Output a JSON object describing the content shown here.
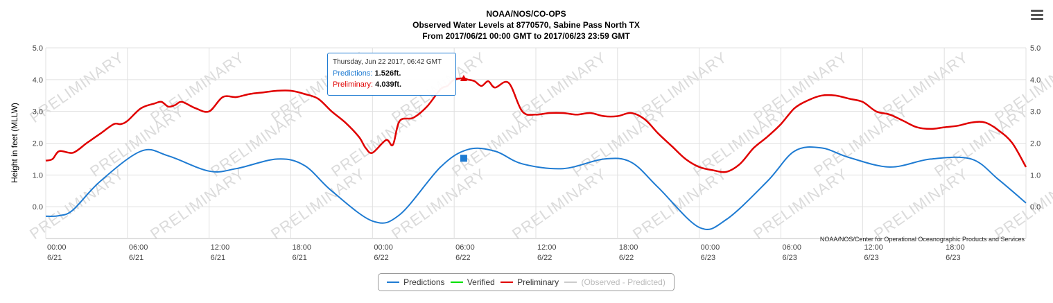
{
  "chart_data": {
    "type": "line",
    "title": "NOAA/NOS/CO-OPS",
    "subtitle_line1": "Observed Water Levels at 8770570, Sabine Pass North TX",
    "subtitle_line2": "From 2017/06/21 00:00 GMT to 2017/06/23 23:59 GMT",
    "ylabel": "Height in feet (MLLW)",
    "ylim": [
      -1.0,
      5.0
    ],
    "xlim_hours": [
      0,
      72
    ],
    "y_ticks": [
      "5.0",
      "4.0",
      "3.0",
      "2.0",
      "1.0",
      "0.0"
    ],
    "y_tick_values": [
      5,
      4,
      3,
      2,
      1,
      0
    ],
    "x_ticks": [
      {
        "time": "00:00",
        "date": "6/21",
        "hour": 0
      },
      {
        "time": "06:00",
        "date": "6/21",
        "hour": 6
      },
      {
        "time": "12:00",
        "date": "6/21",
        "hour": 12
      },
      {
        "time": "18:00",
        "date": "6/21",
        "hour": 18
      },
      {
        "time": "00:00",
        "date": "6/22",
        "hour": 24
      },
      {
        "time": "06:00",
        "date": "6/22",
        "hour": 30
      },
      {
        "time": "12:00",
        "date": "6/22",
        "hour": 36
      },
      {
        "time": "18:00",
        "date": "6/22",
        "hour": 42
      },
      {
        "time": "00:00",
        "date": "6/23",
        "hour": 48
      },
      {
        "time": "06:00",
        "date": "6/23",
        "hour": 54
      },
      {
        "time": "12:00",
        "date": "6/23",
        "hour": 60
      },
      {
        "time": "18:00",
        "date": "6/23",
        "hour": 66
      }
    ],
    "watermark": "PRELIMINARY",
    "credit": "NOAA/NOS/Center for Operational Oceanographic Products and Services",
    "series": [
      {
        "name": "Predictions",
        "color": "#1e7bd2",
        "hours": [
          0,
          1,
          2,
          4,
          7,
          9,
          12,
          14,
          17,
          19,
          21,
          24,
          26,
          29,
          31,
          33,
          35,
          38,
          41,
          43,
          45,
          48,
          50,
          53,
          55,
          57,
          59,
          62,
          65,
          68,
          70,
          72
        ],
        "values": [
          -0.3,
          -0.28,
          -0.1,
          0.8,
          1.75,
          1.6,
          1.12,
          1.2,
          1.5,
          1.3,
          0.5,
          -0.45,
          -0.25,
          1.25,
          1.8,
          1.75,
          1.35,
          1.2,
          1.5,
          1.4,
          0.6,
          -0.65,
          -0.4,
          0.8,
          1.75,
          1.85,
          1.55,
          1.25,
          1.5,
          1.5,
          0.85,
          0.12
        ]
      },
      {
        "name": "Verified",
        "color": "#00e000",
        "hours": [],
        "values": []
      },
      {
        "name": "Preliminary",
        "color": "#e00000",
        "hours": [
          0,
          0.5,
          1,
          2,
          3,
          4,
          5,
          5.5,
          6,
          7,
          8,
          8.5,
          9,
          9.5,
          10,
          11,
          12,
          13,
          14,
          15,
          16,
          17,
          18,
          19,
          20,
          21,
          22,
          23,
          23.5,
          24,
          25,
          25.5,
          26,
          27,
          28,
          29,
          29.5,
          30,
          30.7,
          31,
          31.5,
          32,
          32.5,
          33,
          34,
          35,
          36,
          37,
          38,
          39,
          40,
          41,
          42,
          43,
          44,
          45,
          46,
          47,
          48,
          49,
          50,
          51,
          52,
          53,
          54,
          55,
          56,
          57,
          58,
          59,
          60,
          61,
          62,
          63,
          64,
          65,
          66,
          67,
          68,
          69,
          70,
          71,
          72
        ],
        "values": [
          1.45,
          1.5,
          1.75,
          1.7,
          2.0,
          2.3,
          2.6,
          2.6,
          2.7,
          3.1,
          3.25,
          3.3,
          3.15,
          3.2,
          3.3,
          3.1,
          3.0,
          3.45,
          3.45,
          3.55,
          3.6,
          3.65,
          3.65,
          3.55,
          3.4,
          3.0,
          2.65,
          2.2,
          1.85,
          1.7,
          2.1,
          1.95,
          2.7,
          2.8,
          3.15,
          3.7,
          3.8,
          4.0,
          4.04,
          4.0,
          3.95,
          3.8,
          3.95,
          3.75,
          3.9,
          3.0,
          2.9,
          2.95,
          2.95,
          2.9,
          2.95,
          2.85,
          2.85,
          2.95,
          2.75,
          2.3,
          1.9,
          1.5,
          1.25,
          1.15,
          1.1,
          1.35,
          1.85,
          2.2,
          2.6,
          3.1,
          3.35,
          3.5,
          3.5,
          3.4,
          3.3,
          3.0,
          2.9,
          2.7,
          2.5,
          2.45,
          2.5,
          2.55,
          2.65,
          2.65,
          2.4,
          2.0,
          1.25
        ]
      },
      {
        "name": "(Observed - Predicted)",
        "color": "#cccccc",
        "hours": [],
        "values": []
      }
    ],
    "legend_position": "bottom-center",
    "grid": true
  },
  "tooltip": {
    "header": "Thursday, Jun 22 2017, 06:42 GMT",
    "pred_label": "Predictions:",
    "pred_value": "1.526ft.",
    "prel_label": "Preliminary:",
    "prel_value": "4.039ft.",
    "hour": 30.7,
    "pred_y": 1.526,
    "prel_y": 4.039
  },
  "legend": {
    "items": [
      {
        "label": "Predictions",
        "color": "#1e7bd2"
      },
      {
        "label": "Verified",
        "color": "#00e000"
      },
      {
        "label": "Preliminary",
        "color": "#e00000"
      },
      {
        "label": "(Observed - Predicted)",
        "color": "#cccccc"
      }
    ]
  },
  "menu": {
    "icon": "hamburger-menu-icon"
  }
}
